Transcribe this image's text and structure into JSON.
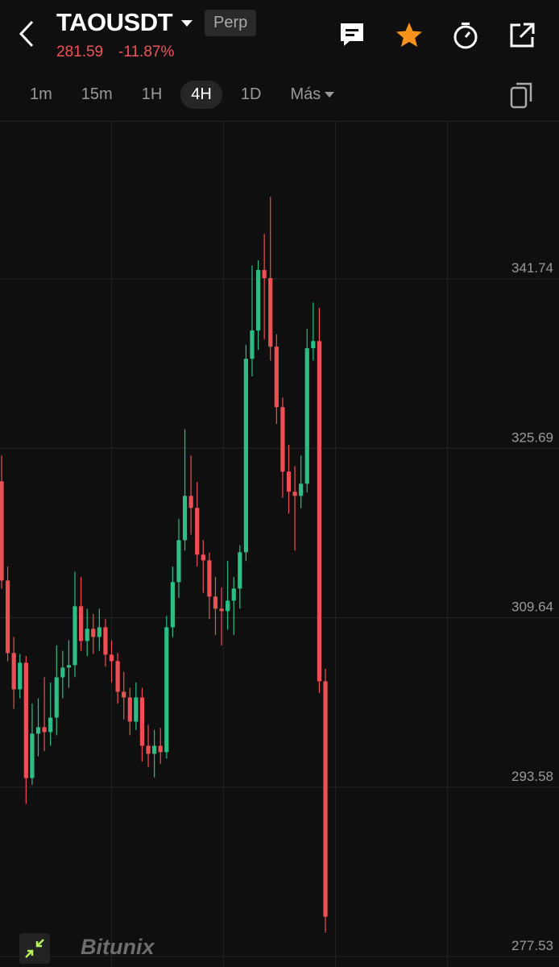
{
  "header": {
    "symbol": "TAOUSDT",
    "market": "Perp",
    "price": "281.59",
    "change": "-11.87%"
  },
  "timeframes": [
    "1m",
    "15m",
    "1H",
    "4H",
    "1D",
    "Más"
  ],
  "watermark": "Bitunix",
  "chart_data": {
    "type": "candlestick",
    "up_color": "#2ebd85",
    "down_color": "#ee4f54",
    "ylim": [
      276.54,
      356.71
    ],
    "yticks": [
      277.53,
      293.58,
      309.64,
      325.69,
      341.74
    ],
    "grid": true,
    "open": [
      322.56,
      313.16,
      306.29,
      302.85,
      305.37,
      294.44,
      298.65,
      299.26,
      298.8,
      300.17,
      303.99,
      304.91,
      305.14,
      310.72,
      307.43,
      308.58,
      307.81,
      308.73,
      306.13,
      305.52,
      302.62,
      302.08,
      299.79,
      302.08,
      297.5,
      296.74,
      297.5,
      296.9,
      308.73,
      313.01,
      316.98,
      321.18,
      320.04,
      315.61,
      315.07,
      311.63,
      310.49,
      310.26,
      311.25,
      312.4,
      315.84,
      334.17,
      336.85,
      342.58,
      341.81,
      335.32,
      329.59,
      323.48,
      321.57,
      321.18,
      322.33,
      335.17,
      335.85,
      303.61
    ],
    "high": [
      325.0,
      314.5,
      307.8,
      306.2,
      306.0,
      301.5,
      302.0,
      304.0,
      303.5,
      307.0,
      306.5,
      307.5,
      314.0,
      313.5,
      310.5,
      310.0,
      310.5,
      309.5,
      307.5,
      306.3,
      304.5,
      303.0,
      303.5,
      303.0,
      299.5,
      299.0,
      299.2,
      309.8,
      314.5,
      319.0,
      327.5,
      325.0,
      322.5,
      317.0,
      315.8,
      313.5,
      312.5,
      315.0,
      313.5,
      316.5,
      335.5,
      343.0,
      343.5,
      346.0,
      349.5,
      336.5,
      330.5,
      326.0,
      324.0,
      325.0,
      337.0,
      339.5,
      339.0,
      304.8
    ],
    "low": [
      312.4,
      305.5,
      301.0,
      302.0,
      292.0,
      293.8,
      296.5,
      297.0,
      297.5,
      298.5,
      302.0,
      303.0,
      304.0,
      306.5,
      306.0,
      306.2,
      306.5,
      305.0,
      303.5,
      301.5,
      300.0,
      298.5,
      299.0,
      296.0,
      295.5,
      294.5,
      295.8,
      296.3,
      307.8,
      311.5,
      316.0,
      317.5,
      314.5,
      312.0,
      309.5,
      308.0,
      307.0,
      308.5,
      308.0,
      310.5,
      315.0,
      332.5,
      335.0,
      336.0,
      334.0,
      328.0,
      321.0,
      319.5,
      316.0,
      320.0,
      321.5,
      334.0,
      302.5,
      279.8
    ],
    "close": [
      313.16,
      306.29,
      302.85,
      305.37,
      294.44,
      298.65,
      299.26,
      298.8,
      300.17,
      303.99,
      304.91,
      305.14,
      310.72,
      307.43,
      308.58,
      307.81,
      308.73,
      306.13,
      305.52,
      302.62,
      302.08,
      299.79,
      302.08,
      297.5,
      296.74,
      297.5,
      296.9,
      308.73,
      313.01,
      316.98,
      321.18,
      320.04,
      315.61,
      315.07,
      311.63,
      310.49,
      310.26,
      311.25,
      312.4,
      315.84,
      334.17,
      336.85,
      342.58,
      341.81,
      335.32,
      329.59,
      323.48,
      321.57,
      321.18,
      322.33,
      335.17,
      335.85,
      303.61,
      281.3
    ]
  }
}
